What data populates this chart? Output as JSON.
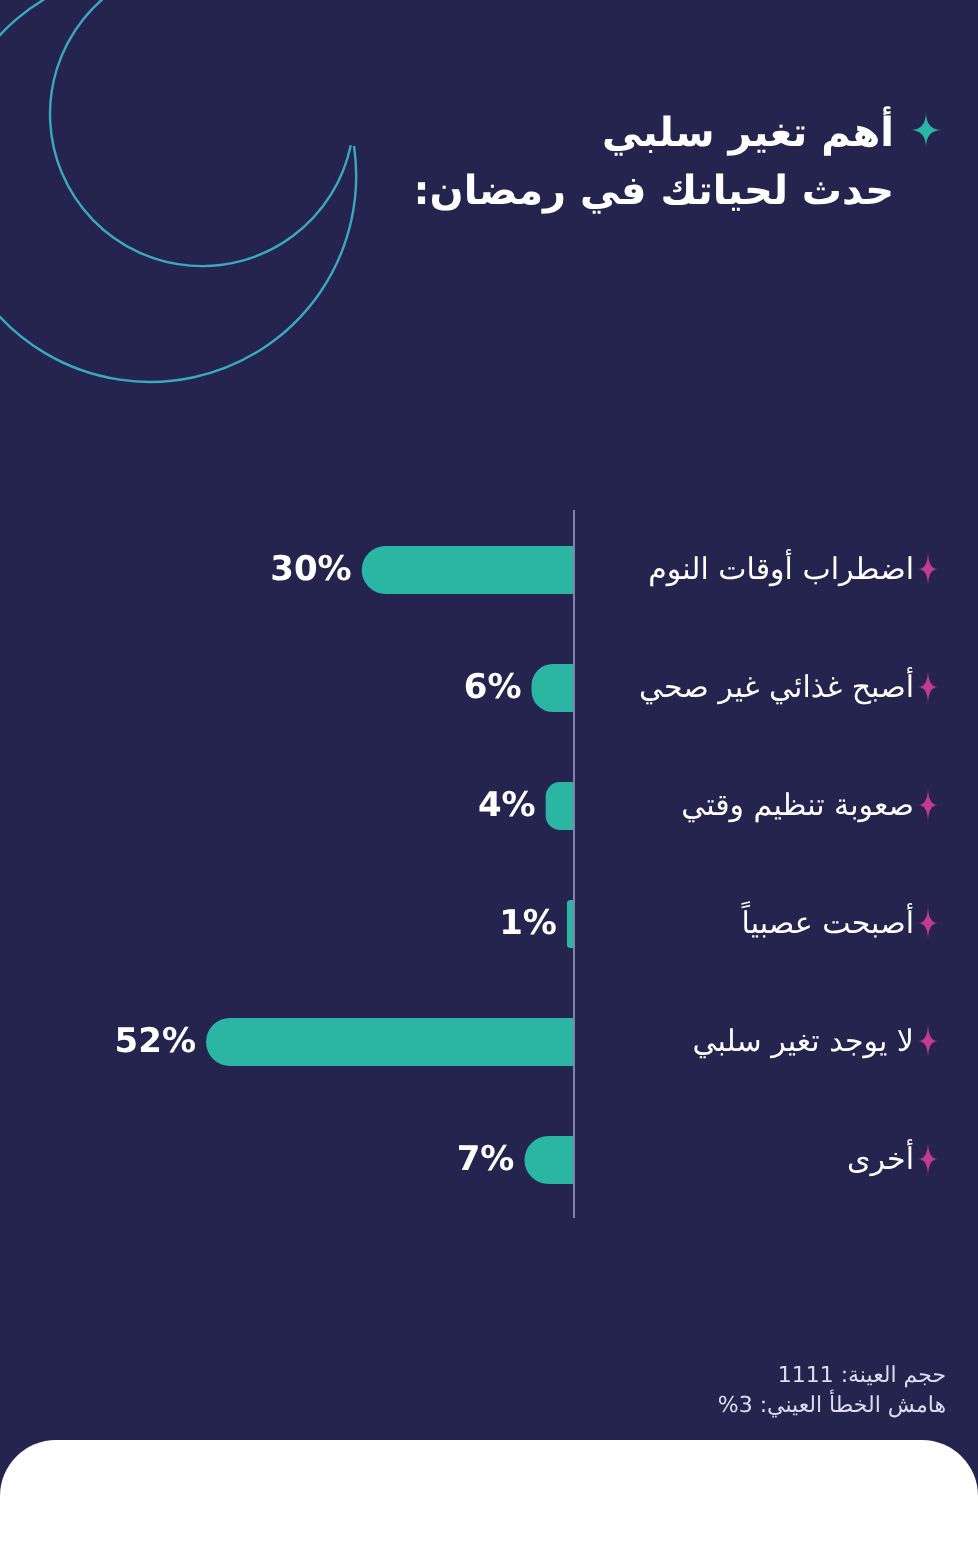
{
  "chart_data": {
    "type": "bar",
    "orientation": "horizontal",
    "title": "أهم تغير سلبي\nحدث لحياتك في رمضان:",
    "categories": [
      "اضطراب أوقات النوم",
      "أصبح غذائي غير صحي",
      "صعوبة تنظيم وقتي",
      "أصبحت عصبياً",
      "لا يوجد تغير سلبي",
      "أخرى"
    ],
    "values": [
      30,
      6,
      4,
      1,
      52,
      7
    ],
    "value_labels": [
      "30%",
      "6%",
      "4%",
      "1%",
      "52%",
      "7%"
    ],
    "color": "#2bb5a3",
    "tick_labels": "y",
    "annotations": [
      "حجم العينة: 1111",
      "هامش الخطأ العيني: 3%"
    ]
  }
}
